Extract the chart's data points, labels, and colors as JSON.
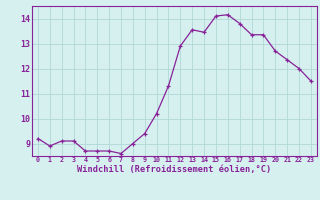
{
  "x": [
    0,
    1,
    2,
    3,
    4,
    5,
    6,
    7,
    8,
    9,
    10,
    11,
    12,
    13,
    14,
    15,
    16,
    17,
    18,
    19,
    20,
    21,
    22,
    23
  ],
  "y": [
    9.2,
    8.9,
    9.1,
    9.1,
    8.7,
    8.7,
    8.7,
    8.6,
    9.0,
    9.4,
    10.2,
    11.3,
    12.9,
    13.55,
    13.45,
    14.1,
    14.15,
    13.8,
    13.35,
    13.35,
    12.7,
    12.35,
    12.0,
    11.5
  ],
  "line_color": "#882299",
  "marker": "+",
  "marker_color": "#882299",
  "bg_color": "#d6f0ef",
  "grid_color": "#b0d8d8",
  "xlabel": "Windchill (Refroidissement éolien,°C)",
  "xlabel_color": "#882299",
  "tick_color": "#882299",
  "ylim": [
    8.5,
    14.5
  ],
  "xlim": [
    -0.5,
    23.5
  ],
  "yticks": [
    9,
    10,
    11,
    12,
    13,
    14
  ],
  "xticks": [
    0,
    1,
    2,
    3,
    4,
    5,
    6,
    7,
    8,
    9,
    10,
    11,
    12,
    13,
    14,
    15,
    16,
    17,
    18,
    19,
    20,
    21,
    22,
    23
  ],
  "spine_color": "#882299",
  "figsize": [
    3.2,
    2.0
  ],
  "dpi": 100
}
